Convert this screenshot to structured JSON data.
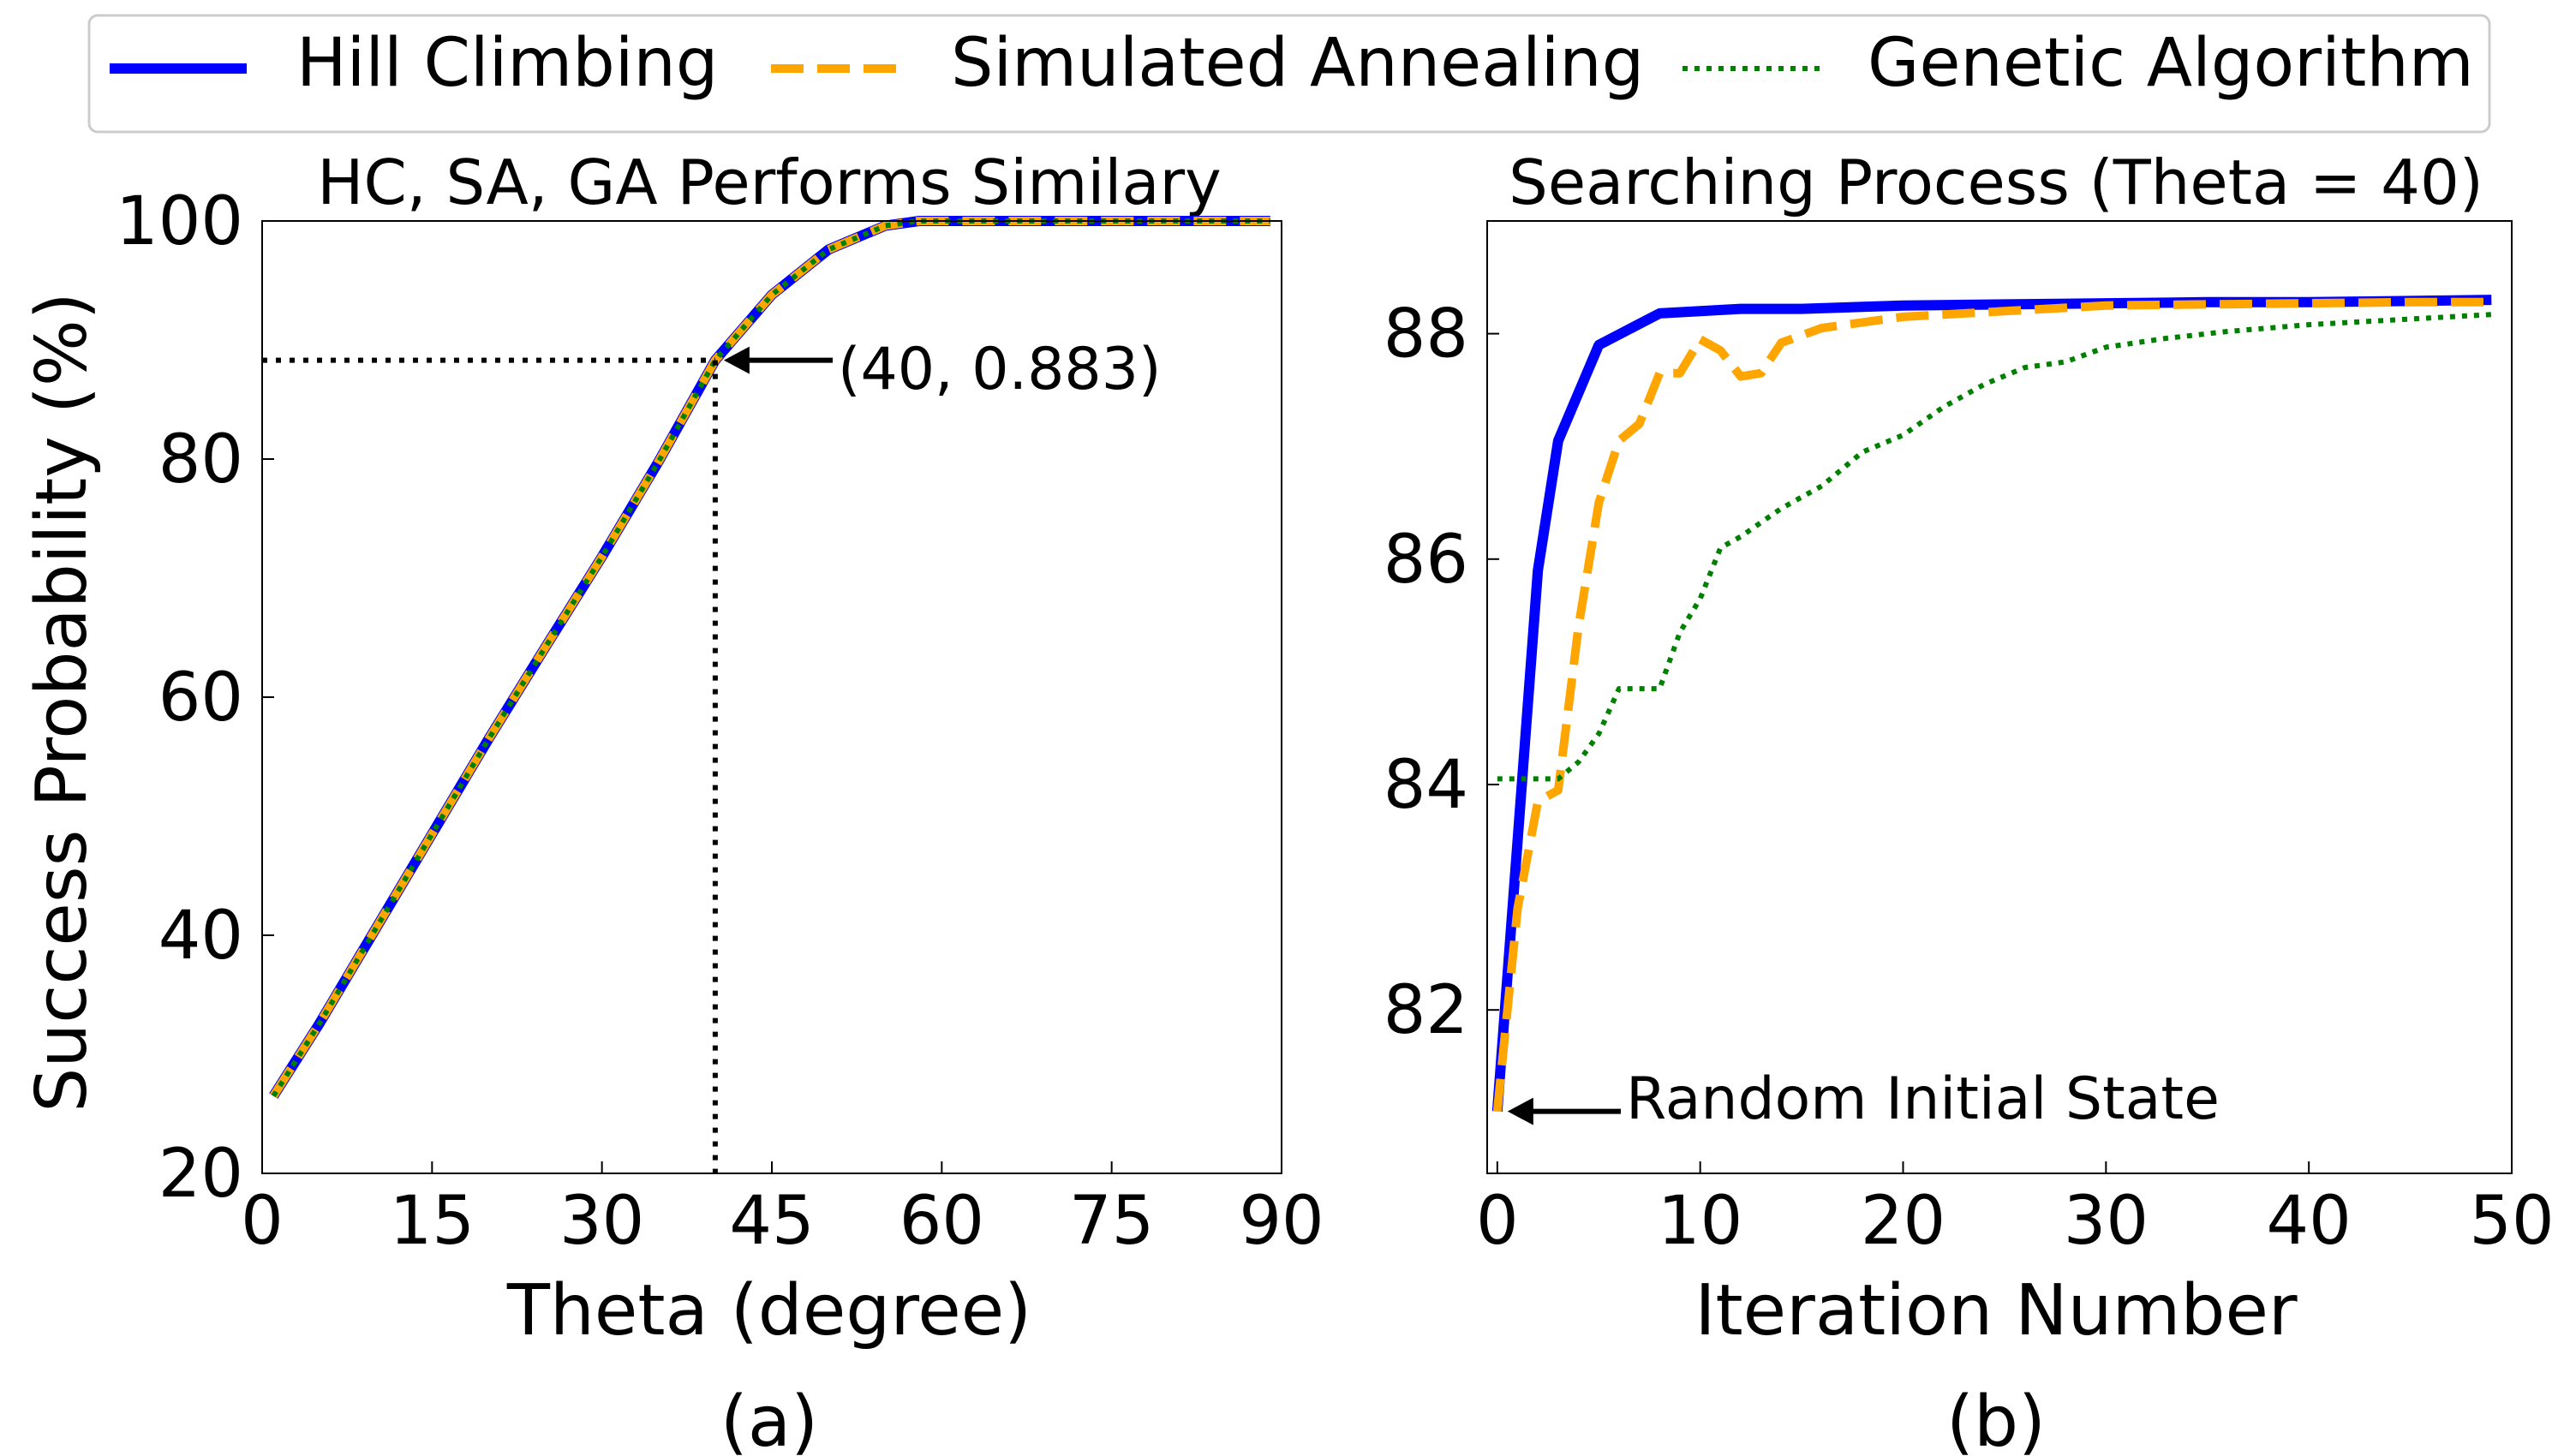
{
  "legend": {
    "placement": "top-center",
    "entries": [
      {
        "label": "Hill Climbing",
        "color": "#0000ff",
        "style": "solid"
      },
      {
        "label": "Simulated Annealing",
        "color": "#ffa500",
        "style": "dashed"
      },
      {
        "label": "Genetic Algorithm",
        "color": "#008000",
        "style": "dotted"
      }
    ]
  },
  "chart_data": [
    {
      "type": "line",
      "title": "HC, SA, GA Performs Similary",
      "xlabel": "Theta (degree)",
      "ylabel": "Success Probability (%)",
      "caption": "(a)",
      "xlim": [
        0,
        90
      ],
      "ylim": [
        20,
        100
      ],
      "xticks": [
        0,
        15,
        30,
        45,
        60,
        75,
        90
      ],
      "yticks": [
        20,
        40,
        60,
        80,
        100
      ],
      "grid": false,
      "annotation": {
        "text": "(40, 0.883)",
        "x": 40,
        "y": 88.3
      },
      "x": [
        1,
        5,
        10,
        15,
        20,
        25,
        30,
        35,
        40,
        45,
        50,
        55,
        58,
        60,
        65,
        70,
        75,
        80,
        85,
        89
      ],
      "series": [
        {
          "name": "Hill Climbing",
          "color": "#0000ff",
          "style": "solid",
          "values": [
            26.5,
            32.5,
            40.5,
            48.5,
            56.5,
            64.2,
            71.8,
            79.8,
            88.3,
            93.8,
            97.6,
            99.6,
            100,
            100,
            100,
            100,
            100,
            100,
            100,
            100
          ]
        },
        {
          "name": "Simulated Annealing",
          "color": "#ffa500",
          "style": "dashed",
          "values": [
            26.5,
            32.5,
            40.5,
            48.5,
            56.5,
            64.2,
            71.8,
            79.8,
            88.3,
            93.8,
            97.6,
            99.6,
            100,
            100,
            100,
            100,
            100,
            100,
            100,
            100
          ]
        },
        {
          "name": "Genetic Algorithm",
          "color": "#008000",
          "style": "dotted",
          "values": [
            26.5,
            32.5,
            40.5,
            48.5,
            56.5,
            64.2,
            71.8,
            79.8,
            88.3,
            93.8,
            97.6,
            99.6,
            100,
            100,
            100,
            100,
            100,
            100,
            100,
            100
          ]
        }
      ]
    },
    {
      "type": "line",
      "title": "Searching Process (Theta = 40)",
      "xlabel": "Iteration Number",
      "ylabel": "",
      "caption": "(b)",
      "xlim": [
        -0.5,
        50
      ],
      "ylim": [
        80.55,
        89.0
      ],
      "xticks": [
        0,
        10,
        20,
        30,
        40,
        50
      ],
      "yticks": [
        82,
        84,
        86,
        88
      ],
      "grid": false,
      "annotation": {
        "text": "Random Initial State",
        "x": 0,
        "y": 81.1
      },
      "series": [
        {
          "name": "Hill Climbing",
          "color": "#0000ff",
          "style": "solid",
          "x": [
            0,
            1,
            2,
            3,
            5,
            8,
            10,
            12,
            15,
            20,
            25,
            30,
            35,
            40,
            45,
            49
          ],
          "values": [
            81.1,
            83.5,
            85.9,
            87.05,
            87.9,
            88.18,
            88.2,
            88.22,
            88.22,
            88.25,
            88.26,
            88.27,
            88.28,
            88.28,
            88.29,
            88.3
          ]
        },
        {
          "name": "Simulated Annealing",
          "color": "#ffa500",
          "style": "dashed",
          "x": [
            0,
            1,
            2,
            3,
            4,
            5,
            6,
            7,
            8,
            9,
            10,
            11,
            12,
            13,
            14,
            16,
            18,
            20,
            25,
            30,
            35,
            40,
            45,
            49
          ],
          "values": [
            81.1,
            82.9,
            83.85,
            83.95,
            85.4,
            86.5,
            87.05,
            87.2,
            87.65,
            87.65,
            87.95,
            87.85,
            87.62,
            87.65,
            87.92,
            88.05,
            88.1,
            88.15,
            88.2,
            88.25,
            88.26,
            88.27,
            88.28,
            88.28
          ]
        },
        {
          "name": "Genetic Algorithm",
          "color": "#008000",
          "style": "dotted",
          "x": [
            0,
            2,
            3,
            4,
            5,
            6,
            7,
            8,
            9,
            10,
            11,
            12,
            14,
            16,
            18,
            20,
            22,
            24,
            26,
            28,
            30,
            33,
            36,
            40,
            45,
            49
          ],
          "values": [
            84.05,
            84.05,
            84.05,
            84.2,
            84.45,
            84.85,
            84.85,
            84.85,
            85.35,
            85.65,
            86.1,
            86.2,
            86.45,
            86.65,
            86.95,
            87.1,
            87.35,
            87.55,
            87.7,
            87.75,
            87.88,
            87.96,
            88.02,
            88.08,
            88.13,
            88.17
          ]
        }
      ]
    }
  ]
}
